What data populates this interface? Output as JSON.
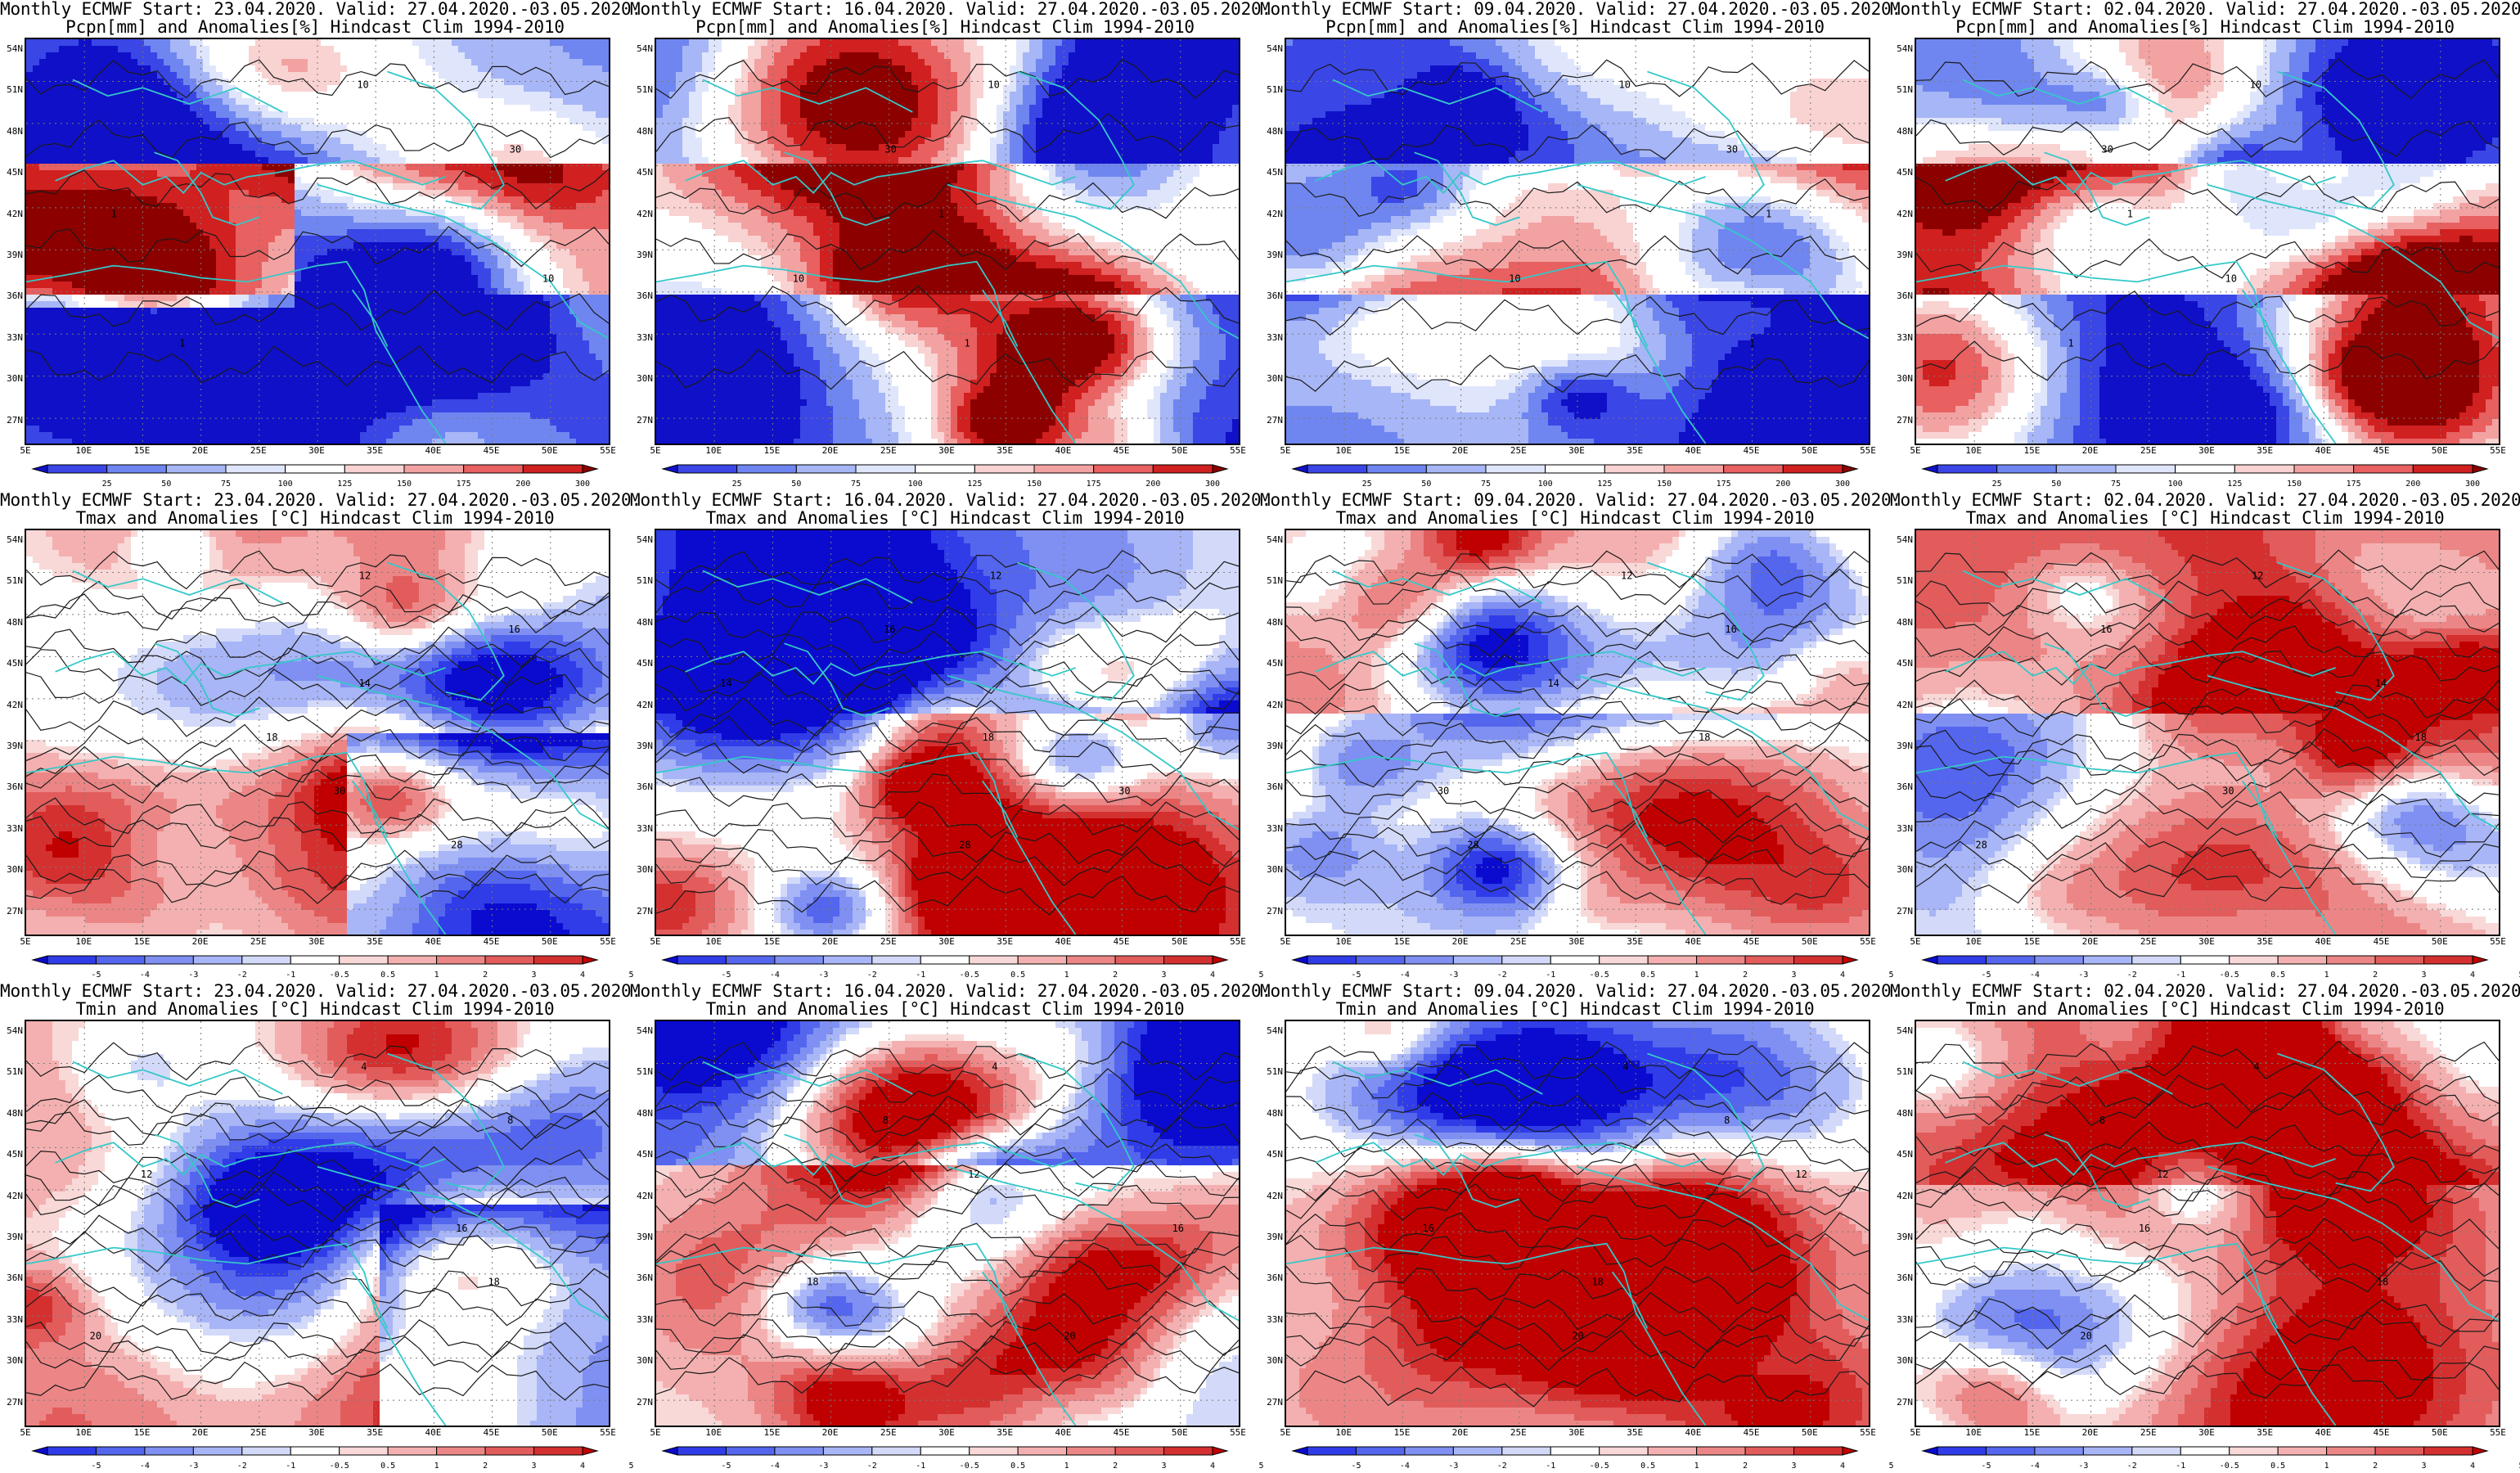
{
  "figure": {
    "columns": [
      {
        "start_line": "Monthly ECMWF Start: 23.04.2020. Valid: 27.04.2020.-03.05.2020."
      },
      {
        "start_line": "Monthly ECMWF Start: 16.04.2020. Valid: 27.04.2020.-03.05.2020."
      },
      {
        "start_line": "Monthly ECMWF Start: 09.04.2020. Valid: 27.04.2020.-03.05.2020."
      },
      {
        "start_line": "Monthly ECMWF Start: 02.04.2020. Valid: 27.04.2020.-03.05.2020."
      }
    ],
    "rows": [
      {
        "variable": "pcpn",
        "subtitle": "Pcpn[mm] and Anomalies[%] Hindcast Clim 1994-2010",
        "colorbar_ticks": [
          "25",
          "50",
          "75",
          "100",
          "125",
          "150",
          "175",
          "200",
          "300"
        ],
        "colorbar_colors": [
          "#1010c8",
          "#3a46e6",
          "#6f86f0",
          "#a7b6f6",
          "#dfe5fb",
          "#ffffff",
          "#f9d2d2",
          "#f3a2a2",
          "#e86060",
          "#d02020",
          "#8c0000"
        ]
      },
      {
        "variable": "tmax",
        "subtitle": "Tmax and Anomalies [°C] Hindcast Clim 1994-2010",
        "colorbar_ticks": [
          "-5",
          "-4",
          "-3",
          "-2",
          "-1",
          "-0.5",
          "0.5",
          "1",
          "2",
          "3",
          "4",
          "5"
        ],
        "colorbar_colors": [
          "#0b0bd0",
          "#2f3ce8",
          "#5466ee",
          "#7f90f2",
          "#a8b5f6",
          "#d3daf9",
          "#ffffff",
          "#f9d8d8",
          "#f4b0b0",
          "#ec8686",
          "#e25c5c",
          "#d43030",
          "#c00000"
        ]
      },
      {
        "variable": "tmin",
        "subtitle": "Tmin and Anomalies [°C] Hindcast Clim 1994-2010",
        "colorbar_ticks": [
          "-5",
          "-4",
          "-3",
          "-2",
          "-1",
          "-0.5",
          "0.5",
          "1",
          "2",
          "3",
          "4",
          "5"
        ],
        "colorbar_colors": [
          "#0b0bd0",
          "#2f3ce8",
          "#5466ee",
          "#7f90f2",
          "#a8b5f6",
          "#d3daf9",
          "#ffffff",
          "#f9d8d8",
          "#f4b0b0",
          "#ec8686",
          "#e25c5c",
          "#d43030",
          "#c00000"
        ]
      }
    ],
    "lat_labels": [
      "54N",
      "51N",
      "48N",
      "45N",
      "42N",
      "39N",
      "36N",
      "33N",
      "30N",
      "27N"
    ],
    "lon_labels": [
      "5E",
      "10E",
      "15E",
      "20E",
      "25E",
      "30E",
      "35E",
      "40E",
      "45E",
      "50E",
      "55E"
    ],
    "contour_labels": {
      "pcpn": [
        "10",
        "30",
        "1",
        "10",
        "1"
      ],
      "tmax": [
        "12",
        "16",
        "14",
        "18",
        "30",
        "28"
      ],
      "tmin": [
        "4",
        "8",
        "12",
        "16",
        "18",
        "20"
      ]
    },
    "colors": {
      "coastline": "#35c8c8",
      "contour": "#1a1a1a",
      "frame": "#000000"
    }
  }
}
